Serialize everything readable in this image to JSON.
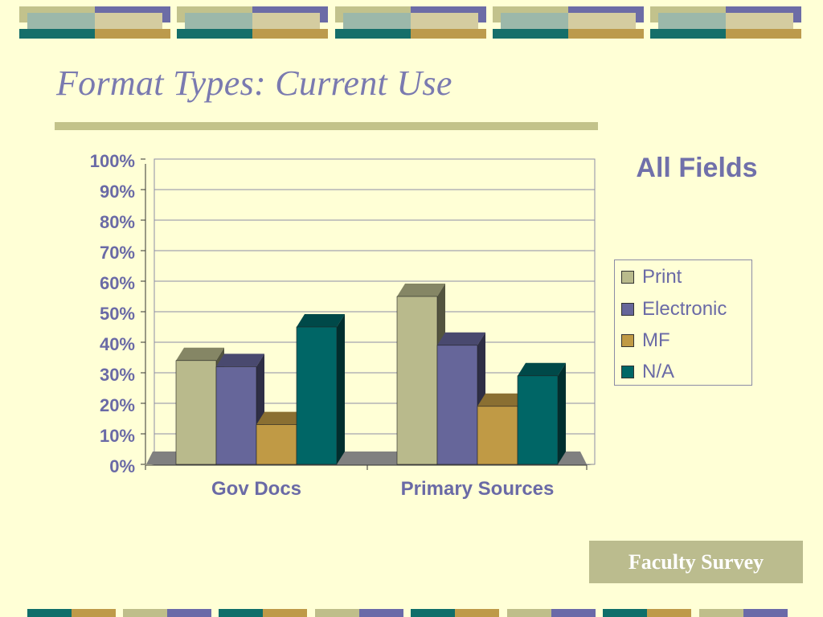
{
  "slide": {
    "title": "Format Types: Current Use",
    "footer": "Faculty Survey"
  },
  "colors": {
    "background": "#FFFFD6",
    "title": "#7A7AB0",
    "rule": "#C3C38A",
    "print": "#B9BA8C",
    "electronic": "#66669A",
    "mf": "#C09A45",
    "na": "#006666",
    "footer_box": "#BBBC8E"
  },
  "decor": {
    "top_tile_colors": [
      "#C2C28C",
      "#6C6CA6",
      "#D4CCA0",
      "#9CB8AA",
      "#156E6A",
      "#BC9A4C"
    ],
    "bottom_tile_colors": [
      "#0F6E6A",
      "#BE9A48",
      "#BFBE8A",
      "#6A6AA8"
    ]
  },
  "chart_data": {
    "type": "bar",
    "title": "All Fields",
    "categories": [
      "Gov Docs",
      "Primary Sources"
    ],
    "series": [
      {
        "name": "Print",
        "values": [
          34,
          55
        ],
        "color": "#B9BA8C"
      },
      {
        "name": "Electronic",
        "values": [
          32,
          39
        ],
        "color": "#66669A"
      },
      {
        "name": "MF",
        "values": [
          13,
          19
        ],
        "color": "#C09A45"
      },
      {
        "name": "N/A",
        "values": [
          45,
          29
        ],
        "color": "#006666"
      }
    ],
    "ylim": [
      0,
      100
    ],
    "yticks": [
      "0%",
      "10%",
      "20%",
      "30%",
      "40%",
      "50%",
      "60%",
      "70%",
      "80%",
      "90%",
      "100%"
    ],
    "xlabel": "",
    "ylabel": "",
    "grid": true,
    "legend_position": "right"
  }
}
